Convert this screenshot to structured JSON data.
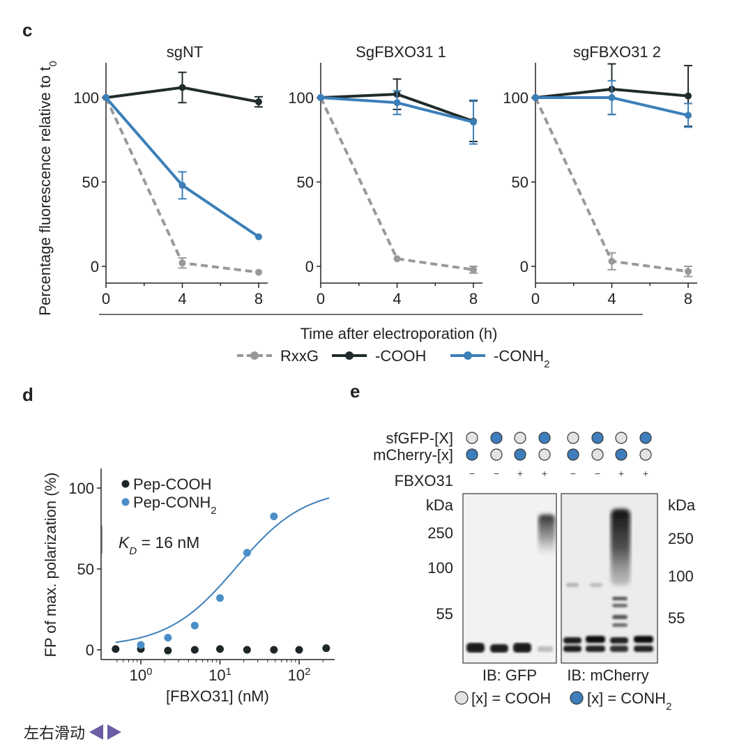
{
  "panels": {
    "c": {
      "letter": "c"
    },
    "d": {
      "letter": "d"
    },
    "e": {
      "letter": "e"
    }
  },
  "chart_data": [
    {
      "type": "line",
      "panel": "c",
      "subplots": [
        {
          "title": "sgNT",
          "series": [
            {
              "key": "RxxG",
              "values": [
                100,
                2,
                -3.5
              ],
              "err": [
                0,
                3,
                0
              ]
            },
            {
              "key": "COOH",
              "values": [
                100,
                106,
                97.5
              ],
              "err": [
                0,
                9,
                3
              ]
            },
            {
              "key": "CONH2",
              "values": [
                100,
                48,
                17.5
              ],
              "err": [
                0,
                8,
                0
              ]
            }
          ]
        },
        {
          "title": "SgFBXO31 1",
          "series": [
            {
              "key": "RxxG",
              "values": [
                100,
                4.5,
                -2
              ],
              "err": [
                0,
                0,
                2
              ]
            },
            {
              "key": "COOH",
              "values": [
                100,
                102,
                86
              ],
              "err": [
                0,
                9,
                12
              ]
            },
            {
              "key": "CONH2",
              "values": [
                100,
                97,
                85.5
              ],
              "err": [
                0,
                7,
                13
              ]
            }
          ]
        },
        {
          "title": "sgFBXO31 2",
          "series": [
            {
              "key": "RxxG",
              "values": [
                100,
                3,
                -3
              ],
              "err": [
                0,
                5,
                3
              ]
            },
            {
              "key": "COOH",
              "values": [
                100,
                105,
                101
              ],
              "err": [
                0,
                15,
                18
              ]
            },
            {
              "key": "CONH2",
              "values": [
                100,
                100,
                89.5
              ],
              "err": [
                0,
                10,
                7
              ]
            }
          ]
        }
      ],
      "x": [
        0,
        4,
        8
      ],
      "xticks": [
        "0",
        "4",
        "8"
      ],
      "yticks": [
        "0",
        "50",
        "100"
      ],
      "ylim": [
        -10,
        120
      ],
      "xlabel": "Time after electroporation (h)",
      "ylabel": "Percentage fluorescence relative to t",
      "ylabel_sub": "0",
      "legend": [
        {
          "key": "RxxG",
          "label": "RxxG",
          "sub": "",
          "color": "#999999",
          "dashed": true
        },
        {
          "key": "COOH",
          "label": "-COOH",
          "sub": "",
          "color": "#222b2b",
          "dashed": false
        },
        {
          "key": "CONH2",
          "label": "-CONH",
          "sub": "2",
          "color": "#3c7fb8",
          "dashed": false
        }
      ],
      "legend_position": "bottom"
    },
    {
      "type": "scatter",
      "panel": "d",
      "xscale": "log",
      "xlim": [
        0.3,
        250
      ],
      "ylim": [
        -5,
        110
      ],
      "xticks": [
        {
          "value": 1,
          "base": "10",
          "exp": "0"
        },
        {
          "value": 10,
          "base": "10",
          "exp": "1"
        },
        {
          "value": 100,
          "base": "10",
          "exp": "2"
        }
      ],
      "yticks": [
        "0",
        "50",
        "100"
      ],
      "xlabel": "[FBXO31] (nM)",
      "ylabel": "FP of max. polarization (%)",
      "series": [
        {
          "name": "Pep-COOH",
          "sub": "",
          "color": "#1e2628",
          "x": [
            0.48,
            1.0,
            2.2,
            4.8,
            10,
            22,
            48,
            100,
            220
          ],
          "y": [
            0.5,
            0.5,
            -0.5,
            0,
            0.5,
            0,
            0,
            0,
            1
          ]
        },
        {
          "name": "Pep-CONH",
          "sub": "2",
          "color": "#4b8fc8",
          "x": [
            1.0,
            2.2,
            4.8,
            10,
            22,
            48
          ],
          "y": [
            3,
            7.5,
            15,
            32,
            60,
            82.5
          ]
        }
      ],
      "fit": {
        "kd": 16,
        "ymax": 100,
        "ymin": 1.8,
        "color": "#3c7fb8"
      },
      "annotation": {
        "k": "K",
        "sub": "D",
        "text": " = 16 nM"
      }
    }
  ],
  "blot": {
    "rows": [
      {
        "label": "sfGFP-[X]",
        "pattern": [
          "grey",
          "blue",
          "grey",
          "blue",
          "grey",
          "blue",
          "grey",
          "blue"
        ]
      },
      {
        "label": "mCherry-[x]",
        "pattern": [
          "blue",
          "grey",
          "blue",
          "grey",
          "blue",
          "grey",
          "blue",
          "grey"
        ]
      }
    ],
    "fbxo31_label": "FBXO31",
    "fbxo31_signs": [
      "−",
      "−",
      "+",
      "+",
      "−",
      "−",
      "+",
      "+"
    ],
    "kda_label": "kDa",
    "markers": [
      "250",
      "100",
      "55"
    ],
    "gfp_label": "IB: GFP",
    "mcherry_label": "IB: mCherry",
    "key_grey": "[x] = COOH",
    "key_blue": "[x] = CONH",
    "key_blue_sub": "2",
    "colors": {
      "grey": "#e3e3e3",
      "blue": "#3f7ebd"
    }
  },
  "swipe_hint": "左右滑动"
}
